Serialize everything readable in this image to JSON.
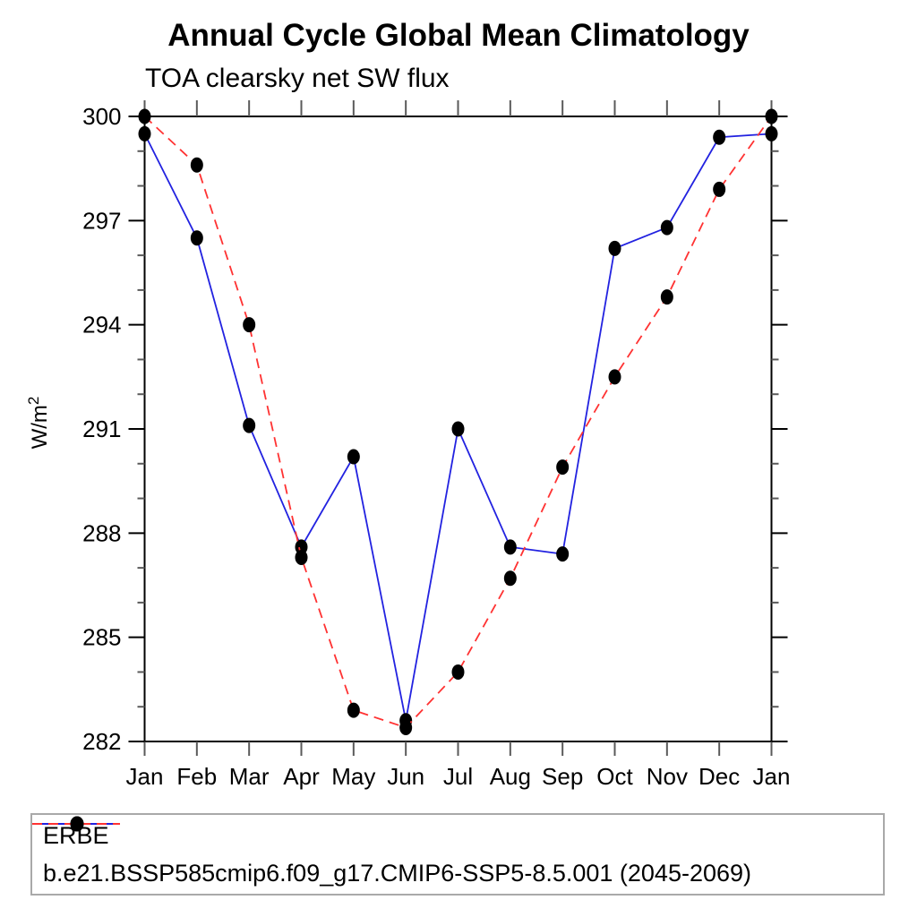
{
  "chart_data": {
    "type": "line",
    "title": "Annual Cycle Global Mean Climatology",
    "subtitle": "TOA clearsky net SW flux",
    "ylabel": "W/m²",
    "ylabel_base": "W/m",
    "ylabel_sup": "2",
    "x_categories": [
      "Jan",
      "Feb",
      "Mar",
      "Apr",
      "May",
      "Jun",
      "Jul",
      "Aug",
      "Sep",
      "Oct",
      "Nov",
      "Dec",
      "Jan"
    ],
    "ylim": [
      282,
      300
    ],
    "ytick_major": [
      282,
      285,
      288,
      291,
      294,
      297,
      300
    ],
    "ytick_minor_step": 1,
    "grid": false,
    "legend_position": "bottom-left-box",
    "marker_color": "#000000",
    "series": [
      {
        "name": "ERBE",
        "color": "#2222e0",
        "style": "solid",
        "marker": "filled-circle",
        "values": [
          299.5,
          296.5,
          291.1,
          287.6,
          290.2,
          282.6,
          291.0,
          287.6,
          287.4,
          296.2,
          296.8,
          299.4,
          299.5
        ]
      },
      {
        "name": "b.e21.BSSP585cmip6.f09_g17.CMIP6-SSP5-8.5.001 (2045-2069)",
        "color": "#ff3232",
        "style": "dashed",
        "marker": "filled-circle",
        "values": [
          300.0,
          298.6,
          294.0,
          287.3,
          282.9,
          282.4,
          284.0,
          286.7,
          289.9,
          292.5,
          294.8,
          297.9,
          300.0
        ]
      }
    ]
  },
  "colors": {
    "axis": "#000000",
    "tick": "#5a5a5a",
    "text": "#000000",
    "legend_border": "#a9a9a9"
  }
}
